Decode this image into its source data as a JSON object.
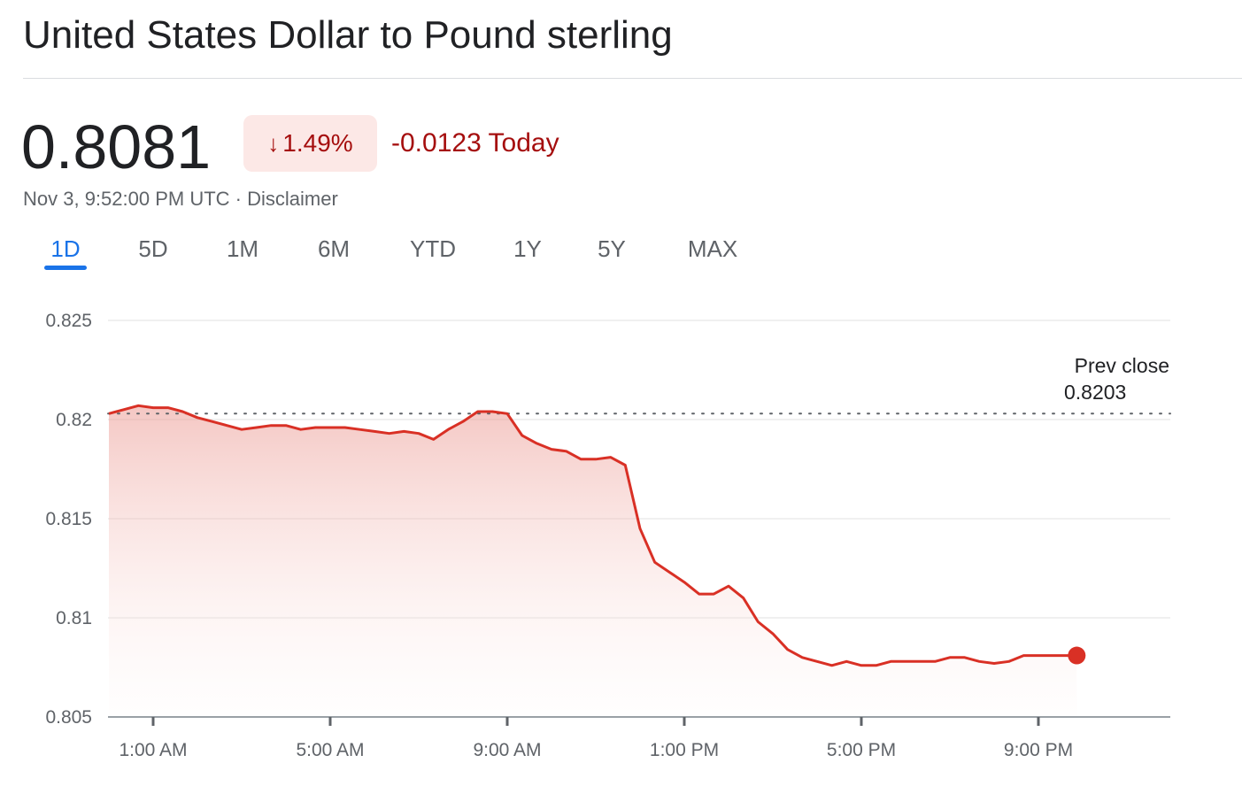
{
  "header": {
    "title": "United States Dollar to Pound sterling",
    "price": "0.8081",
    "change_percent": "1.49%",
    "change_arrow": "↓",
    "change_today": "-0.0123 Today",
    "timestamp": "Nov 3, 9:52:00 PM UTC",
    "separator": "·",
    "disclaimer": "Disclaimer"
  },
  "tabs": [
    "1D",
    "5D",
    "1M",
    "6M",
    "YTD",
    "1Y",
    "5Y",
    "MAX"
  ],
  "active_tab": "1D",
  "colors": {
    "down": "#a50e0e",
    "line": "#d93025",
    "badge_bg": "#fce8e6",
    "active_tab": "#1a73e8",
    "grid": "#ececec",
    "axis_text": "#5f6368"
  },
  "chart_data": {
    "type": "area",
    "series": [
      {
        "x": [
          "0:00",
          "0:20",
          "0:40",
          "1:00",
          "1:20",
          "1:40",
          "2:00",
          "2:20",
          "2:40",
          "3:00",
          "3:20",
          "3:40",
          "4:00",
          "4:20",
          "4:40",
          "5:00",
          "5:20",
          "5:40",
          "6:00",
          "6:20",
          "6:40",
          "7:00",
          "7:20",
          "7:40",
          "8:00",
          "8:20",
          "8:40",
          "9:00",
          "9:20",
          "9:40",
          "10:00",
          "10:20",
          "10:40",
          "11:00",
          "11:20",
          "11:40",
          "12:00",
          "12:20",
          "12:40",
          "13:00",
          "13:20",
          "13:40",
          "14:00",
          "14:20",
          "14:40",
          "15:00",
          "15:20",
          "15:40",
          "16:00",
          "16:20",
          "16:40",
          "17:00",
          "17:20",
          "17:40",
          "18:00",
          "18:20",
          "18:40",
          "19:00",
          "19:20",
          "19:40",
          "20:00",
          "20:20",
          "20:40",
          "21:00",
          "21:20",
          "21:52"
        ],
        "y": [
          0.8203,
          0.8205,
          0.8207,
          0.8206,
          0.8206,
          0.8204,
          0.8201,
          0.8199,
          0.8197,
          0.8195,
          0.8196,
          0.8197,
          0.8197,
          0.8195,
          0.8196,
          0.8196,
          0.8196,
          0.8195,
          0.8194,
          0.8193,
          0.8194,
          0.8193,
          0.819,
          0.8195,
          0.8199,
          0.8204,
          0.8204,
          0.8203,
          0.8192,
          0.8188,
          0.8185,
          0.8184,
          0.818,
          0.818,
          0.8181,
          0.8177,
          0.8145,
          0.8128,
          0.8123,
          0.8118,
          0.8112,
          0.8112,
          0.8116,
          0.811,
          0.8098,
          0.8092,
          0.8084,
          0.808,
          0.8078,
          0.8076,
          0.8078,
          0.8076,
          0.8076,
          0.8078,
          0.8078,
          0.8078,
          0.8078,
          0.808,
          0.808,
          0.8078,
          0.8077,
          0.8078,
          0.8081,
          0.8081,
          0.8081,
          0.8081
        ]
      }
    ],
    "y_ticks": [
      "0.825",
      "0.82",
      "0.815",
      "0.81",
      "0.805"
    ],
    "y_tick_values": [
      0.825,
      0.82,
      0.815,
      0.81,
      0.805
    ],
    "x_ticks": [
      "1:00 AM",
      "5:00 AM",
      "9:00 AM",
      "1:00 PM",
      "5:00 PM",
      "9:00 PM"
    ],
    "x_tick_hours": [
      1,
      5,
      9,
      13,
      17,
      21
    ],
    "ylim": [
      0.805,
      0.825
    ],
    "xlim_hours": [
      -1,
      23
    ],
    "reference_line": {
      "label": "Prev close",
      "value_text": "0.8203",
      "value": 0.8203
    },
    "last_point": {
      "x": "21:52",
      "y": 0.8081
    },
    "grid": true
  }
}
